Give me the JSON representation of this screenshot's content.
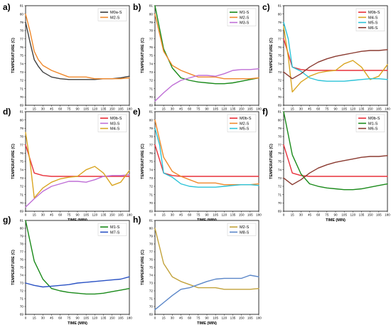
{
  "figure": {
    "x_ticks": [
      0,
      15,
      30,
      45,
      60,
      75,
      90,
      105,
      120,
      135,
      150,
      165,
      180
    ],
    "y_ticks": [
      69,
      70,
      71,
      72,
      73,
      74,
      75,
      76,
      77,
      78,
      79,
      80,
      81
    ],
    "colors": {
      "M0a-S": "#404040",
      "M2-S": "#f0892c",
      "M1-S": "#1a8a1a",
      "M3-S": "#bf6fd6",
      "M0b-S": "#e8303a",
      "M4-S": "#d9a521",
      "M5-S": "#2cc3d8",
      "M6-S": "#8a3a30",
      "M7-S": "#2a52c4",
      "M8-S": "#5a86c8",
      "M2-S-h": "#c2a23a"
    }
  },
  "chart_data": [
    {
      "panel": "a)",
      "type": "line",
      "xlabel": "TIME (MIN)",
      "ylabel": "TEMPERATURE (C)",
      "xlim": [
        0,
        180
      ],
      "ylim": [
        69,
        81
      ],
      "legend": "top-right",
      "series": [
        {
          "name": "M0a-S",
          "color": "#404040",
          "x": [
            0,
            8,
            15,
            22,
            30,
            45,
            60,
            75,
            90,
            105,
            120,
            135,
            150,
            165,
            180
          ],
          "y": [
            79,
            76.5,
            74.5,
            73.7,
            73.0,
            72.4,
            72.2,
            72.1,
            72.1,
            72.1,
            72.1,
            72.2,
            72.2,
            72.3,
            72.5
          ]
        },
        {
          "name": "M2-S",
          "color": "#f0892c",
          "x": [
            0,
            8,
            15,
            22,
            30,
            45,
            60,
            75,
            90,
            105,
            120,
            135,
            150,
            165,
            180
          ],
          "y": [
            80,
            77.8,
            75.5,
            74.5,
            73.8,
            73.2,
            72.8,
            72.4,
            72.4,
            72.4,
            72.2,
            72.2,
            72.2,
            72.2,
            72.3
          ]
        }
      ]
    },
    {
      "panel": "b)",
      "type": "line",
      "xlabel": "TIME (MIN)",
      "ylabel": "TEMPERATURE (C)",
      "xlim": [
        0,
        180
      ],
      "ylim": [
        69,
        81
      ],
      "legend": "top-right",
      "series": [
        {
          "name": "M1-S",
          "color": "#1a8a1a",
          "x": [
            0,
            15,
            30,
            45,
            60,
            75,
            90,
            105,
            120,
            135,
            150,
            165,
            180
          ],
          "y": [
            81,
            75.8,
            73.5,
            72.3,
            72.0,
            71.8,
            71.7,
            71.6,
            71.6,
            71.7,
            71.9,
            72.1,
            72.3
          ]
        },
        {
          "name": "M2-S",
          "color": "#f0892c",
          "x": [
            0,
            15,
            30,
            45,
            60,
            75,
            90,
            105,
            120,
            135,
            150,
            165,
            180
          ],
          "y": [
            80,
            75.5,
            73.8,
            73.2,
            72.8,
            72.4,
            72.4,
            72.4,
            72.2,
            72.2,
            72.2,
            72.2,
            72.3
          ]
        },
        {
          "name": "M3-S",
          "color": "#bf6fd6",
          "x": [
            0,
            15,
            30,
            45,
            60,
            75,
            90,
            105,
            120,
            135,
            150,
            165,
            180
          ],
          "y": [
            69.5,
            70.5,
            71.4,
            72.0,
            72.3,
            72.6,
            72.6,
            72.5,
            72.8,
            73.2,
            73.3,
            73.3,
            73.4
          ]
        }
      ]
    },
    {
      "panel": "c)",
      "type": "line",
      "xlabel": "TIME (MIN)",
      "ylabel": "TEMPERATURE (C)",
      "xlim": [
        0,
        180
      ],
      "ylim": [
        69,
        81
      ],
      "legend": "top-right",
      "series": [
        {
          "name": "M0b-S",
          "color": "#e8303a",
          "x": [
            0,
            8,
            15,
            30,
            45,
            60,
            75,
            90,
            105,
            120,
            135,
            150,
            165,
            180
          ],
          "y": [
            77,
            75.2,
            73.6,
            73.3,
            73.2,
            73.2,
            73.2,
            73.2,
            73.2,
            73.2,
            73.2,
            73.2,
            73.2,
            73.2
          ]
        },
        {
          "name": "M4-S",
          "color": "#d9a521",
          "x": [
            0,
            8,
            15,
            30,
            45,
            60,
            75,
            90,
            105,
            120,
            135,
            150,
            165,
            180
          ],
          "y": [
            78.5,
            74.8,
            70.6,
            71.8,
            72.5,
            72.9,
            73.1,
            73.2,
            74.0,
            74.4,
            73.6,
            72.1,
            72.5,
            73.9
          ]
        },
        {
          "name": "M5-S",
          "color": "#2cc3d8",
          "x": [
            0,
            8,
            15,
            30,
            45,
            60,
            75,
            90,
            105,
            120,
            135,
            150,
            165,
            180
          ],
          "y": [
            79,
            77,
            73.6,
            73.1,
            72.3,
            72.0,
            71.9,
            71.9,
            71.9,
            72.0,
            72.1,
            72.2,
            72.2,
            72.1
          ]
        },
        {
          "name": "M6-S",
          "color": "#8a3a30",
          "x": [
            0,
            15,
            30,
            45,
            60,
            75,
            90,
            105,
            120,
            135,
            150,
            165,
            180
          ],
          "y": [
            73.0,
            72.2,
            72.8,
            73.6,
            74.2,
            74.6,
            74.9,
            75.1,
            75.3,
            75.5,
            75.6,
            75.6,
            75.7
          ]
        }
      ]
    },
    {
      "panel": "d)",
      "type": "line",
      "xlabel": "TIME (MIN)",
      "ylabel": "TEMPERATURE (C)",
      "xlim": [
        0,
        180
      ],
      "ylim": [
        69,
        81
      ],
      "legend": "top-right",
      "series": [
        {
          "name": "M0b-S",
          "color": "#e8303a",
          "x": [
            0,
            8,
            15,
            30,
            45,
            60,
            75,
            90,
            105,
            120,
            135,
            150,
            165,
            180
          ],
          "y": [
            77,
            75.2,
            73.6,
            73.3,
            73.2,
            73.2,
            73.2,
            73.2,
            73.2,
            73.2,
            73.2,
            73.2,
            73.2,
            73.2
          ]
        },
        {
          "name": "M3-S",
          "color": "#bf6fd6",
          "x": [
            0,
            15,
            30,
            45,
            60,
            75,
            90,
            105,
            120,
            135,
            150,
            165,
            180
          ],
          "y": [
            69.5,
            70.5,
            71.4,
            72.0,
            72.3,
            72.6,
            72.6,
            72.5,
            72.8,
            73.2,
            73.3,
            73.3,
            73.4
          ]
        },
        {
          "name": "M4-S",
          "color": "#d9a521",
          "x": [
            0,
            8,
            15,
            30,
            45,
            60,
            75,
            90,
            105,
            120,
            135,
            150,
            165,
            180
          ],
          "y": [
            78.5,
            74.8,
            70.6,
            71.8,
            72.5,
            72.9,
            73.1,
            73.2,
            74.0,
            74.4,
            73.6,
            72.1,
            72.5,
            73.9
          ]
        }
      ]
    },
    {
      "panel": "e)",
      "type": "line",
      "xlabel": "TIME (MIN)",
      "ylabel": "TEMPERATURE (C)",
      "xlim": [
        0,
        180
      ],
      "ylim": [
        69,
        81
      ],
      "legend": "top-right",
      "series": [
        {
          "name": "M0b-S",
          "color": "#e8303a",
          "x": [
            0,
            8,
            15,
            30,
            45,
            60,
            75,
            90,
            105,
            120,
            135,
            150,
            165,
            180
          ],
          "y": [
            77,
            75.2,
            73.6,
            73.3,
            73.2,
            73.2,
            73.2,
            73.2,
            73.2,
            73.2,
            73.2,
            73.2,
            73.2,
            73.2
          ]
        },
        {
          "name": "M2-S",
          "color": "#f0892c",
          "x": [
            0,
            15,
            30,
            45,
            60,
            75,
            90,
            105,
            120,
            135,
            150,
            165,
            180
          ],
          "y": [
            80,
            75.5,
            73.8,
            73.2,
            72.8,
            72.4,
            72.4,
            72.4,
            72.2,
            72.2,
            72.2,
            72.2,
            72.3
          ]
        },
        {
          "name": "M5-S",
          "color": "#2cc3d8",
          "x": [
            0,
            8,
            15,
            30,
            45,
            60,
            75,
            90,
            105,
            120,
            135,
            150,
            165,
            180
          ],
          "y": [
            79,
            77,
            73.6,
            73.1,
            72.3,
            72.0,
            71.9,
            71.9,
            71.9,
            72.0,
            72.1,
            72.2,
            72.2,
            72.1
          ]
        }
      ]
    },
    {
      "panel": "f)",
      "type": "line",
      "xlabel": "TIME (MIN)",
      "ylabel": "TEMPERATURE (C)",
      "xlim": [
        0,
        180
      ],
      "ylim": [
        69,
        81
      ],
      "legend": "top-right",
      "series": [
        {
          "name": "M0b-S",
          "color": "#e8303a",
          "x": [
            0,
            8,
            15,
            30,
            45,
            60,
            75,
            90,
            105,
            120,
            135,
            150,
            165,
            180
          ],
          "y": [
            77,
            75.2,
            73.6,
            73.3,
            73.2,
            73.2,
            73.2,
            73.2,
            73.2,
            73.2,
            73.2,
            73.2,
            73.2,
            73.2
          ]
        },
        {
          "name": "M1-S",
          "color": "#1a8a1a",
          "x": [
            0,
            15,
            30,
            45,
            60,
            75,
            90,
            105,
            120,
            135,
            150,
            165,
            180
          ],
          "y": [
            81,
            75.8,
            73.5,
            72.3,
            72.0,
            71.8,
            71.7,
            71.6,
            71.6,
            71.7,
            71.9,
            72.1,
            72.3
          ]
        },
        {
          "name": "M6-S",
          "color": "#8a3a30",
          "x": [
            0,
            15,
            30,
            45,
            60,
            75,
            90,
            105,
            120,
            135,
            150,
            165,
            180
          ],
          "y": [
            73.0,
            72.2,
            72.8,
            73.6,
            74.2,
            74.6,
            74.9,
            75.1,
            75.3,
            75.5,
            75.6,
            75.6,
            75.7
          ]
        }
      ]
    },
    {
      "panel": "g)",
      "type": "line",
      "xlabel": "TIME (MIN)",
      "ylabel": "TEMPERATURE (C)",
      "xlim": [
        0,
        180
      ],
      "ylim": [
        69,
        81
      ],
      "legend": "top-right",
      "series": [
        {
          "name": "M1-S",
          "color": "#1a8a1a",
          "x": [
            0,
            15,
            30,
            45,
            60,
            75,
            90,
            105,
            120,
            135,
            150,
            165,
            180
          ],
          "y": [
            81,
            75.8,
            73.5,
            72.3,
            72.0,
            71.8,
            71.7,
            71.6,
            71.6,
            71.7,
            71.9,
            72.1,
            72.3
          ]
        },
        {
          "name": "M7-S",
          "color": "#2a52c4",
          "x": [
            0,
            15,
            30,
            45,
            60,
            75,
            90,
            105,
            120,
            135,
            150,
            165,
            180
          ],
          "y": [
            73.0,
            72.7,
            72.5,
            72.6,
            72.7,
            72.8,
            73.0,
            73.1,
            73.2,
            73.3,
            73.4,
            73.5,
            73.8
          ]
        }
      ]
    },
    {
      "panel": "h)",
      "type": "line",
      "xlabel": "TIME (MIN)",
      "ylabel": "TEMPERATURE (C)",
      "xlim": [
        0,
        180
      ],
      "ylim": [
        69,
        81
      ],
      "legend": "top-right",
      "series": [
        {
          "name": "M2-S",
          "color": "#c2a23a",
          "x": [
            0,
            15,
            30,
            45,
            60,
            75,
            90,
            105,
            120,
            135,
            150,
            165,
            180
          ],
          "y": [
            80,
            75.5,
            73.8,
            73.2,
            72.8,
            72.4,
            72.4,
            72.4,
            72.2,
            72.2,
            72.2,
            72.2,
            72.3
          ]
        },
        {
          "name": "M8-S",
          "color": "#5a86c8",
          "x": [
            0,
            15,
            30,
            45,
            60,
            75,
            90,
            105,
            120,
            135,
            150,
            165,
            180
          ],
          "y": [
            69.6,
            70.5,
            71.4,
            72.2,
            72.4,
            72.8,
            73.2,
            73.5,
            73.6,
            73.6,
            73.6,
            74.0,
            73.8
          ]
        }
      ]
    }
  ]
}
